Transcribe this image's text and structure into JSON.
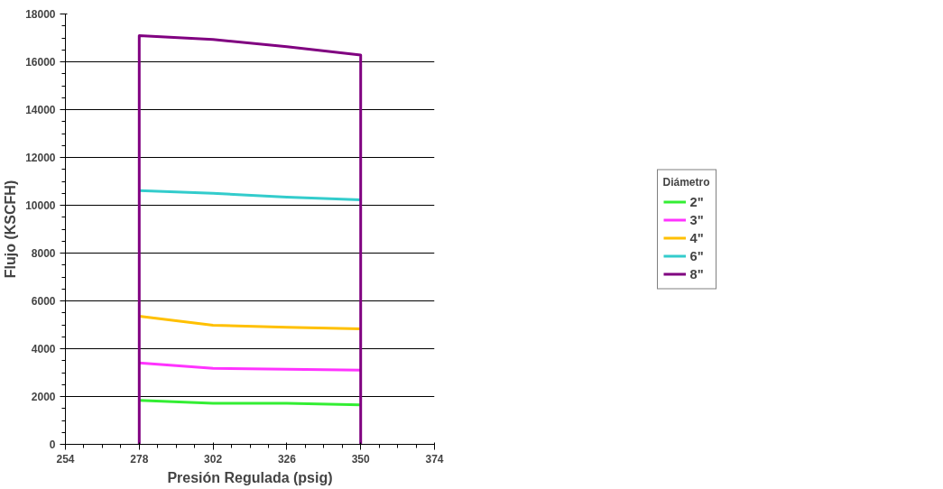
{
  "chart_data": {
    "type": "line",
    "xlabel": "Presión Regulada (psig)",
    "ylabel": "Flujo (KSCFH)",
    "legend_title": "Diámetro",
    "xlim": [
      254,
      374
    ],
    "xticks": [
      254,
      278,
      302,
      326,
      350,
      374
    ],
    "ylim": [
      0,
      18000
    ],
    "yticks": [
      0,
      2000,
      4000,
      6000,
      8000,
      10000,
      12000,
      14000,
      16000,
      18000
    ],
    "grid": "y",
    "legend": "right",
    "series": [
      {
        "name": "2\"",
        "color": "#33ee33",
        "x": [
          278,
          302,
          326,
          350
        ],
        "values": [
          1840,
          1720,
          1720,
          1650
        ]
      },
      {
        "name": "3\"",
        "color": "#ff33ff",
        "x": [
          278,
          302,
          326,
          350
        ],
        "values": [
          3410,
          3180,
          3140,
          3100
        ]
      },
      {
        "name": "4\"",
        "color": "#ffc000",
        "x": [
          278,
          302,
          326,
          350
        ],
        "values": [
          5360,
          4980,
          4900,
          4830
        ]
      },
      {
        "name": "6\"",
        "color": "#33cccc",
        "x": [
          278,
          302,
          326,
          350
        ],
        "values": [
          10610,
          10500,
          10340,
          10230
        ]
      },
      {
        "name": "8\"",
        "color": "#800080",
        "x": [
          278,
          278,
          302,
          326,
          350,
          350
        ],
        "values": [
          0,
          17090,
          16930,
          16630,
          16280,
          0
        ]
      }
    ]
  }
}
